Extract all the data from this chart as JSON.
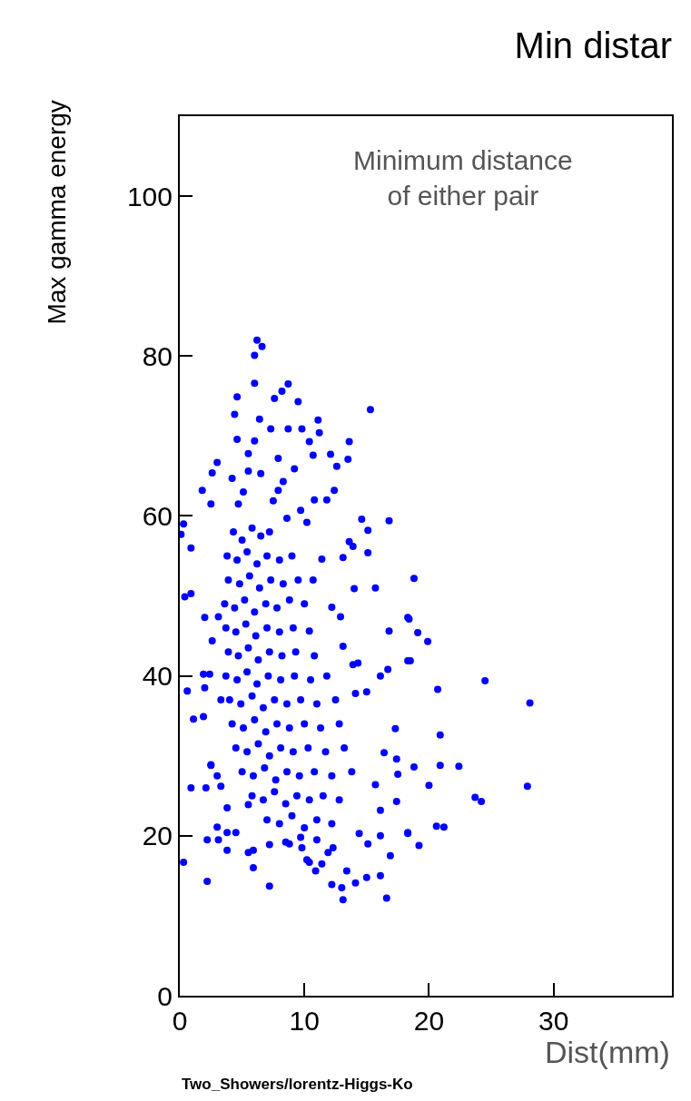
{
  "chart_data": {
    "type": "scatter",
    "title": "Min distar",
    "xlabel": "Dist(mm)",
    "ylabel": "Max gamma energy",
    "annotations": [
      "Minimum distance\nof either pair",
      "Two_Showers/lorentz-Higgs-Ko"
    ],
    "color": "#0000ff",
    "marker": "circle",
    "xlim": [
      0,
      39.5
    ],
    "ylim": [
      0,
      110
    ],
    "xticks": [
      0,
      10,
      20,
      30
    ],
    "yticks": [
      0,
      20,
      40,
      60,
      80,
      100
    ],
    "x": [
      6.2,
      6.6,
      6.0,
      6.0,
      8.7,
      8.2,
      4.6,
      7.6,
      9.5,
      15.3,
      4.4,
      6.4,
      7.3,
      8.7,
      9.8,
      11.1,
      11.2,
      10.4,
      13.6,
      4.6,
      6.0,
      5.5,
      7.9,
      10.7,
      12.1,
      13.5,
      12.6,
      3.0,
      2.6,
      9.2,
      4.2,
      5.5,
      6.5,
      8.3,
      1.8,
      5.1,
      7.9,
      12.4,
      2.5,
      4.7,
      7.5,
      10.8,
      11.8,
      9.7,
      14.6,
      0.3,
      0.1,
      8.6,
      10.2,
      0.9,
      0.9,
      16.8,
      15.1,
      13.6,
      14.0,
      15.7,
      16.8,
      18.3,
      18.3,
      11.4,
      13.1,
      15.1,
      13.9,
      10.7,
      12.2,
      12.9,
      10.4,
      13.1,
      13.9,
      14.3,
      16.1,
      16.7,
      15.0,
      14.1,
      17.3,
      16.4,
      17.4,
      2.0,
      3.1,
      2.6,
      0.6,
      1.9,
      2.4,
      2.0,
      1.1,
      1.9,
      0.4,
      2.5,
      3.3,
      0.9,
      2.1,
      3.3,
      3.0,
      2.5,
      3.8,
      5.5,
      3.0,
      3.8,
      4.5,
      2.2,
      3.1,
      3.8,
      5.5,
      5.9,
      5.9,
      0.3,
      2.2,
      7.2,
      7.2,
      8.5,
      10.9,
      12.2,
      13.0,
      13.1,
      14.1,
      15.0,
      16.1,
      16.6,
      16.9,
      18.3,
      17.5,
      17.4,
      13.4,
      11.9,
      10.4,
      9.7,
      14.4,
      15.1,
      16.1,
      15.7,
      16.1,
      18.8,
      18.4,
      19.1,
      19.9,
      18.5,
      20.7,
      24.5,
      28.1,
      20.9,
      18.8,
      20.9,
      22.4,
      20.0,
      27.9,
      23.7,
      24.2,
      20.6,
      21.2,
      18.3,
      19.2,
      4.3,
      5.0,
      5.8,
      6.5,
      7.2,
      3.8,
      4.6,
      5.4,
      6.2,
      7.0,
      8.0,
      9.0,
      3.9,
      4.8,
      5.6,
      6.4,
      7.3,
      8.3,
      9.5,
      3.6,
      4.4,
      5.2,
      6.0,
      6.9,
      7.8,
      8.8,
      10.0,
      3.7,
      4.5,
      5.3,
      6.1,
      7.0,
      8.0,
      9.1,
      3.9,
      4.7,
      5.5,
      6.3,
      7.2,
      8.2,
      9.3,
      10.8,
      3.7,
      4.6,
      5.4,
      6.2,
      7.1,
      8.1,
      9.2,
      10.5,
      11.8,
      4.0,
      4.9,
      5.8,
      6.7,
      7.6,
      8.6,
      9.7,
      11.0,
      12.5,
      4.2,
      5.1,
      6.0,
      6.9,
      7.8,
      8.8,
      10.0,
      11.3,
      12.8,
      4.5,
      5.4,
      6.3,
      7.2,
      8.1,
      9.1,
      10.3,
      11.7,
      13.2,
      5.0,
      5.9,
      6.8,
      7.7,
      8.6,
      9.6,
      10.8,
      12.2,
      13.8,
      5.8,
      6.7,
      7.6,
      8.5,
      9.4,
      10.4,
      11.5,
      12.8,
      7.0,
      8.0,
      9.0,
      10.0,
      11.0,
      12.2,
      8.8,
      9.8,
      11.0,
      12.3,
      10.2,
      11.4
    ],
    "values": [
      82.0,
      81.2,
      80.1,
      76.6,
      76.5,
      75.6,
      74.9,
      74.7,
      74.3,
      73.3,
      72.7,
      72.1,
      70.9,
      70.9,
      70.9,
      72.0,
      70.4,
      69.3,
      69.3,
      69.6,
      69.4,
      67.8,
      67.2,
      67.6,
      67.7,
      67.1,
      66.2,
      66.7,
      65.4,
      65.9,
      64.7,
      65.6,
      65.3,
      64.3,
      63.2,
      63.0,
      63.2,
      63.2,
      61.5,
      61.5,
      61.9,
      62.0,
      62.0,
      60.7,
      59.6,
      59.0,
      57.7,
      59.7,
      59.2,
      56.0,
      50.3,
      59.4,
      58.2,
      56.8,
      50.9,
      51.0,
      45.6,
      47.3,
      41.9,
      54.6,
      54.8,
      55.4,
      56.2,
      52.0,
      48.6,
      47.4,
      45.6,
      43.7,
      41.4,
      41.6,
      40.0,
      40.8,
      38.0,
      37.8,
      33.4,
      30.4,
      29.6,
      47.3,
      47.4,
      44.4,
      38.1,
      40.2,
      40.2,
      38.5,
      34.6,
      34.9,
      49.9,
      28.9,
      37.0,
      26.0,
      26.0,
      26.2,
      27.5,
      28.8,
      23.5,
      23.9,
      21.1,
      20.4,
      20.4,
      19.5,
      19.5,
      18.2,
      17.9,
      18.2,
      16.0,
      16.7,
      14.3,
      13.7,
      18.9,
      19.2,
      15.6,
      13.9,
      13.5,
      12.0,
      14.1,
      14.8,
      15.0,
      12.2,
      17.5,
      20.4,
      27.7,
      24.3,
      15.6,
      17.9,
      16.7,
      19.8,
      20.3,
      19.0,
      20.0,
      26.4,
      23.2,
      52.2,
      47.1,
      45.4,
      44.3,
      41.9,
      38.3,
      39.4,
      36.6,
      32.6,
      28.6,
      28.8,
      28.7,
      26.3,
      26.2,
      24.8,
      24.3,
      21.2,
      21.1,
      20.3,
      18.8,
      58,
      57,
      58.5,
      57.5,
      58,
      55,
      54.5,
      55.5,
      54,
      55,
      54.5,
      55,
      52,
      51.5,
      52.5,
      51,
      52,
      51.5,
      52,
      49,
      48.5,
      49.5,
      48,
      49,
      48.5,
      49.5,
      49,
      46,
      45.5,
      46.5,
      45,
      46,
      45.5,
      46,
      43,
      42.5,
      43.5,
      42,
      43,
      42.5,
      43,
      42.5,
      40,
      39.5,
      40.5,
      39,
      40,
      39.5,
      40,
      39.5,
      40,
      37,
      36.5,
      37.5,
      36,
      37,
      36.5,
      37,
      36.5,
      37,
      34,
      33.5,
      34.5,
      33,
      34,
      33.5,
      34,
      33.5,
      34,
      31,
      30.5,
      31.5,
      30,
      31,
      30.5,
      31,
      30.5,
      31,
      28,
      27.5,
      28.5,
      27,
      28,
      27.5,
      28,
      27.5,
      28,
      25,
      24.5,
      25.5,
      24,
      25,
      24.5,
      25,
      24.5,
      22,
      21.5,
      22.5,
      21,
      22,
      21.5,
      19,
      18.5,
      19.5,
      18.5,
      17,
      16.5
    ]
  }
}
